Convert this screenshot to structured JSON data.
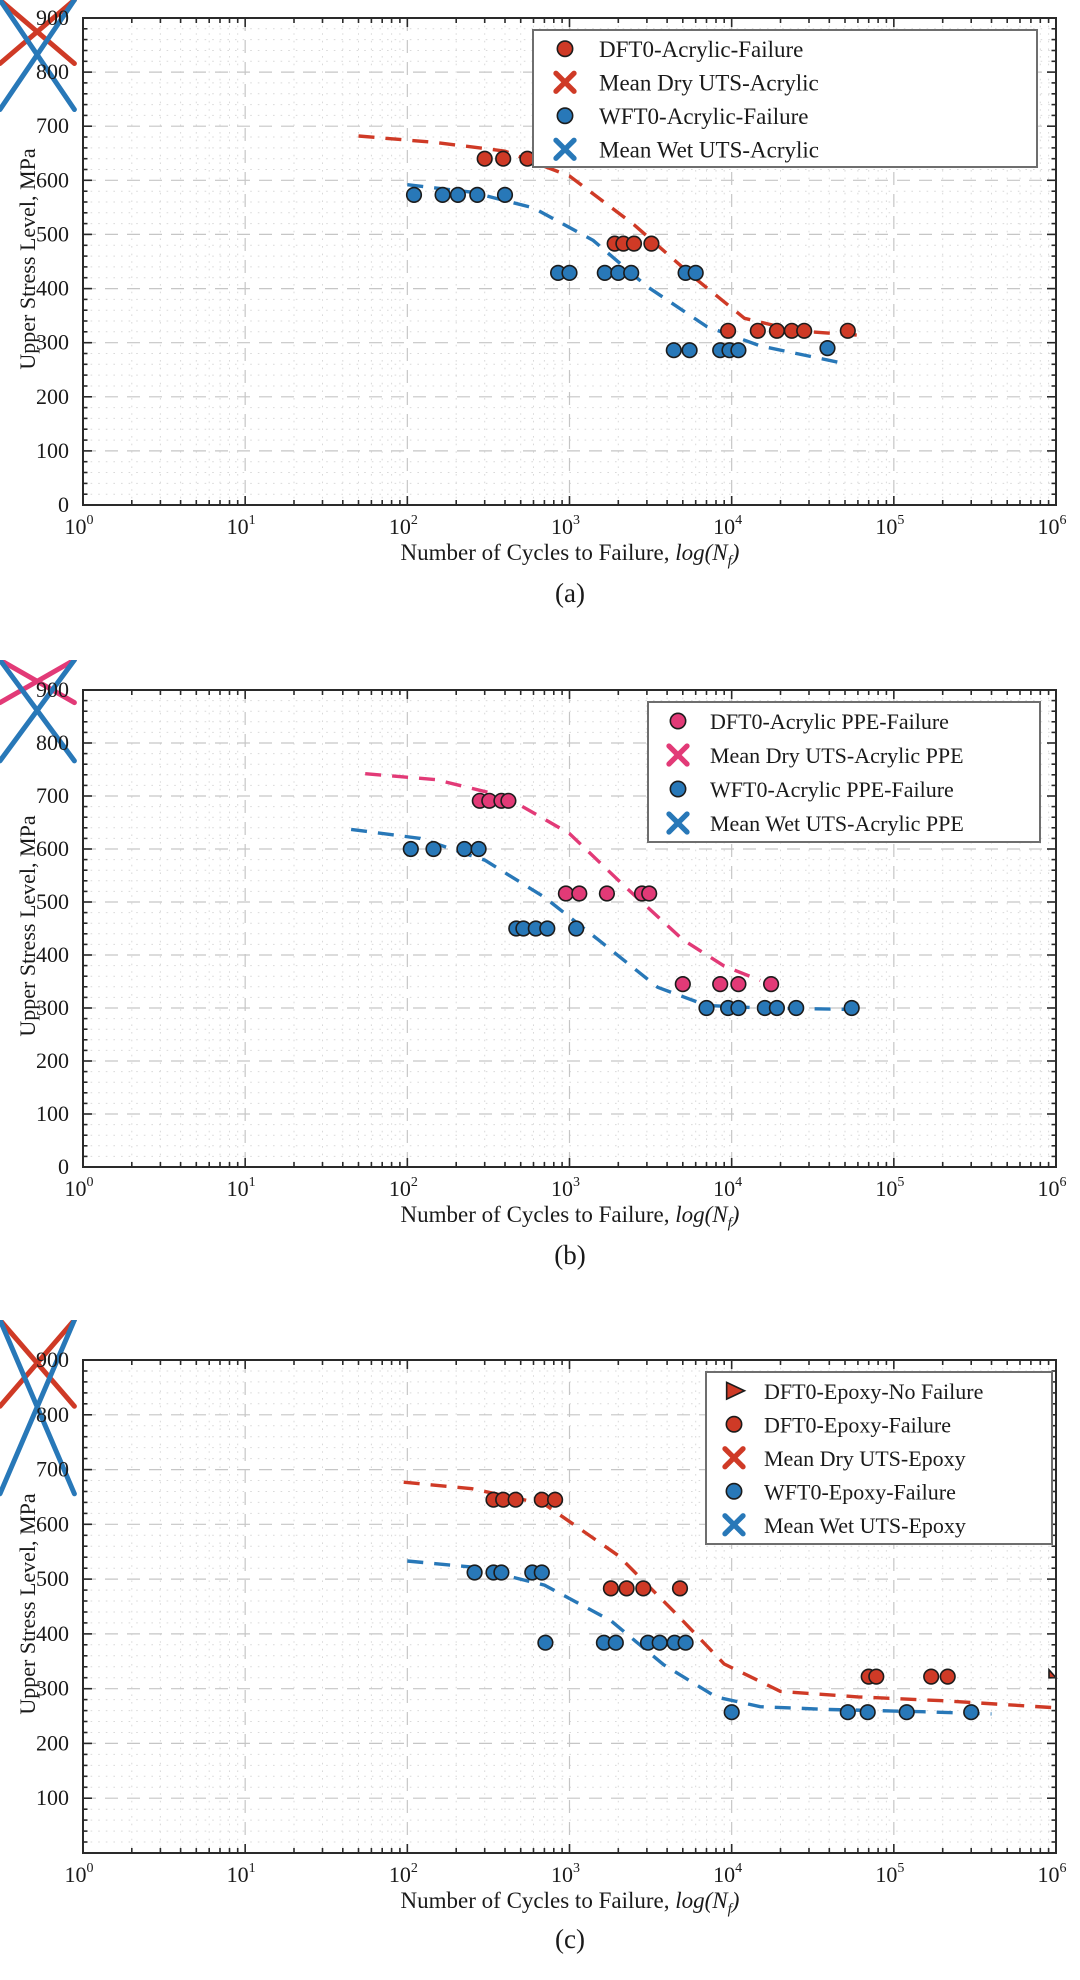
{
  "colors": {
    "dry_red": "#cf3a26",
    "wet_blue": "#2878b8",
    "ppe_pink": "#e23a77",
    "marker_edge": "#1c1c1c",
    "axis": "#2a2a2a",
    "grid_major": "#c6c6c6",
    "grid_minor": "#d9d9d9",
    "legend_border": "#6e6e6e",
    "text": "#1a1a1a"
  },
  "axis_text": {
    "ylabel": "Upper Stress Level, MPa",
    "xlabel_pre": "Number of Cycles to Failure, ",
    "xlabel_log": "log(N",
    "xlabel_sub": "f",
    "xlabel_close": ")",
    "x_tick_base": "10"
  },
  "chart_data": [
    {
      "type": "scatter",
      "caption": "(a)",
      "ylabel": "Upper Stress Level, MPa",
      "xlim_exponents": [
        0,
        6
      ],
      "ylim": [
        0,
        900
      ],
      "grid": true,
      "legend_position": "top-right",
      "x_tick_exponents": [
        0,
        1,
        2,
        3,
        4,
        5,
        6
      ],
      "y_ticks": [
        0,
        100,
        200,
        300,
        400,
        500,
        600,
        700,
        800,
        900
      ],
      "y_tick_labels": [
        "0",
        "100",
        "200",
        "300",
        "400",
        "500",
        "600",
        "700",
        "800",
        "900"
      ],
      "legend": [
        {
          "marker": "circle",
          "color": "dry_red",
          "label": "DFT0-Acrylic-Failure"
        },
        {
          "marker": "x",
          "color": "dry_red",
          "label": "Mean Dry UTS-Acrylic"
        },
        {
          "marker": "circle",
          "color": "wet_blue",
          "label": "WFT0-Acrylic-Failure"
        },
        {
          "marker": "x",
          "color": "wet_blue",
          "label": "Mean Wet UTS-Acrylic"
        }
      ],
      "series": [
        {
          "name": "DFT0-Acrylic-Failure",
          "marker": "circle",
          "color": "dry_red",
          "points": [
            [
              300,
              640
            ],
            [
              390,
              640
            ],
            [
              550,
              640
            ],
            [
              800,
              640
            ],
            [
              1900,
              483
            ],
            [
              2150,
              483
            ],
            [
              2500,
              483
            ],
            [
              3200,
              483
            ],
            [
              9500,
              322
            ],
            [
              14500,
              322
            ],
            [
              19000,
              322
            ],
            [
              23500,
              322
            ],
            [
              28000,
              322
            ],
            [
              52000,
              322
            ]
          ]
        },
        {
          "name": "Mean Dry UTS-Acrylic",
          "marker": "x",
          "color": "dry_red",
          "points": [
            [
              1,
              800
            ]
          ]
        },
        {
          "name": "WFT0-Acrylic-Failure",
          "marker": "circle",
          "color": "wet_blue",
          "points": [
            [
              110,
              573
            ],
            [
              165,
              573
            ],
            [
              205,
              573
            ],
            [
              270,
              573
            ],
            [
              400,
              573
            ],
            [
              850,
              429
            ],
            [
              1000,
              429
            ],
            [
              1650,
              429
            ],
            [
              2000,
              429
            ],
            [
              2400,
              429
            ],
            [
              5200,
              429
            ],
            [
              6000,
              429
            ],
            [
              4400,
              286
            ],
            [
              5500,
              286
            ],
            [
              8500,
              286
            ],
            [
              9700,
              286
            ],
            [
              11000,
              286
            ],
            [
              39000,
              290
            ]
          ]
        },
        {
          "name": "Mean Wet UTS-Acrylic",
          "marker": "x",
          "color": "wet_blue",
          "points": [
            [
              1,
              715
            ]
          ]
        }
      ],
      "trend_lines": [
        {
          "name": "dry-fit",
          "color": "dry_red",
          "points": [
            [
              50,
              682
            ],
            [
              150,
              670
            ],
            [
              400,
              654
            ],
            [
              1000,
              608
            ],
            [
              2500,
              518
            ],
            [
              6000,
              418
            ],
            [
              12000,
              345
            ],
            [
              25000,
              322
            ],
            [
              60000,
              314
            ]
          ]
        },
        {
          "name": "wet-fit",
          "color": "wet_blue",
          "points": [
            [
              100,
              592
            ],
            [
              250,
              578
            ],
            [
              600,
              549
            ],
            [
              1400,
              489
            ],
            [
              3000,
              404
            ],
            [
              7000,
              330
            ],
            [
              15000,
              294
            ],
            [
              45000,
              264
            ]
          ]
        }
      ]
    },
    {
      "type": "scatter",
      "caption": "(b)",
      "ylabel": "Upper Stress Level, MPa",
      "xlim_exponents": [
        0,
        6
      ],
      "ylim": [
        0,
        900
      ],
      "grid": true,
      "legend_position": "top-right",
      "x_tick_exponents": [
        0,
        1,
        2,
        3,
        4,
        5,
        6
      ],
      "y_ticks": [
        0,
        100,
        200,
        300,
        400,
        500,
        600,
        700,
        800,
        900
      ],
      "y_tick_labels": [
        "0",
        "100",
        "200",
        "300",
        "400",
        "500",
        "600",
        "700",
        "800",
        "900"
      ],
      "legend": [
        {
          "marker": "circle",
          "color": "ppe_pink",
          "label": "DFT0-Acrylic PPE-Failure"
        },
        {
          "marker": "x",
          "color": "ppe_pink",
          "label": "Mean Dry UTS-Acrylic PPE"
        },
        {
          "marker": "circle",
          "color": "wet_blue",
          "label": "WFT0-Acrylic PPE-Failure"
        },
        {
          "marker": "x",
          "color": "wet_blue",
          "label": "Mean Wet UTS-Acrylic PPE"
        }
      ],
      "series": [
        {
          "name": "DFT0-Acrylic PPE-Failure",
          "marker": "circle",
          "color": "ppe_pink",
          "points": [
            [
              280,
              691
            ],
            [
              320,
              691
            ],
            [
              380,
              691
            ],
            [
              420,
              691
            ],
            [
              950,
              516
            ],
            [
              1150,
              516
            ],
            [
              1700,
              516
            ],
            [
              2800,
              516
            ],
            [
              3100,
              516
            ],
            [
              5000,
              345
            ],
            [
              8500,
              345
            ],
            [
              11000,
              345
            ],
            [
              17500,
              345
            ]
          ]
        },
        {
          "name": "Mean Dry UTS-Acrylic PPE",
          "marker": "x",
          "color": "ppe_pink",
          "points": [
            [
              1,
              860
            ]
          ]
        },
        {
          "name": "WFT0-Acrylic PPE-Failure",
          "marker": "circle",
          "color": "wet_blue",
          "points": [
            [
              105,
              600
            ],
            [
              145,
              600
            ],
            [
              225,
              600
            ],
            [
              275,
              600
            ],
            [
              470,
              450
            ],
            [
              520,
              450
            ],
            [
              620,
              450
            ],
            [
              730,
              450
            ],
            [
              1100,
              450
            ],
            [
              7000,
              300
            ],
            [
              9500,
              300
            ],
            [
              11000,
              300
            ],
            [
              16000,
              300
            ],
            [
              19000,
              300
            ],
            [
              25000,
              300
            ],
            [
              55000,
              300
            ]
          ]
        },
        {
          "name": "Mean Wet UTS-Acrylic PPE",
          "marker": "x",
          "color": "wet_blue",
          "points": [
            [
              1,
              750
            ]
          ]
        }
      ],
      "trend_lines": [
        {
          "name": "dry-fit",
          "color": "ppe_pink",
          "points": [
            [
              55,
              742
            ],
            [
              150,
              731
            ],
            [
              400,
              699
            ],
            [
              1000,
              629
            ],
            [
              2200,
              529
            ],
            [
              5000,
              429
            ],
            [
              9000,
              379
            ],
            [
              15000,
              352
            ]
          ]
        },
        {
          "name": "wet-fit",
          "color": "wet_blue",
          "points": [
            [
              45,
              637
            ],
            [
              120,
              620
            ],
            [
              300,
              579
            ],
            [
              700,
              509
            ],
            [
              1500,
              429
            ],
            [
              3500,
              339
            ],
            [
              7000,
              305
            ],
            [
              15000,
              300
            ],
            [
              65000,
              297
            ]
          ]
        }
      ]
    },
    {
      "type": "scatter",
      "caption": "(c)",
      "ylabel": "Upper Stress Level, MPa",
      "xlim_exponents": [
        0,
        6
      ],
      "ylim": [
        0,
        900
      ],
      "grid": true,
      "legend_position": "top-right",
      "x_tick_exponents": [
        0,
        1,
        2,
        3,
        4,
        5,
        6
      ],
      "y_ticks": [
        0,
        100,
        200,
        300,
        400,
        500,
        600,
        700,
        800,
        900
      ],
      "y_tick_labels": [
        "",
        "100",
        "200",
        "300",
        "400",
        "500",
        "600",
        "700",
        "800",
        "900"
      ],
      "legend": [
        {
          "marker": "triangle",
          "color": "dry_red",
          "label": "DFT0-Epoxy-No Failure"
        },
        {
          "marker": "circle",
          "color": "dry_red",
          "label": "DFT0-Epoxy-Failure"
        },
        {
          "marker": "x",
          "color": "dry_red",
          "label": "Mean Dry UTS-Epoxy"
        },
        {
          "marker": "circle",
          "color": "wet_blue",
          "label": "WFT0-Epoxy-Failure"
        },
        {
          "marker": "x",
          "color": "wet_blue",
          "label": "Mean Wet UTS-Epoxy"
        }
      ],
      "series": [
        {
          "name": "DFT0-Epoxy-No Failure",
          "marker": "triangle",
          "color": "dry_red",
          "points": [
            [
              1000000,
              320
            ]
          ]
        },
        {
          "name": "DFT0-Epoxy-Failure",
          "marker": "circle",
          "color": "dry_red",
          "points": [
            [
              340,
              645
            ],
            [
              390,
              645
            ],
            [
              465,
              645
            ],
            [
              675,
              645
            ],
            [
              815,
              645
            ],
            [
              1800,
              483
            ],
            [
              2250,
              483
            ],
            [
              2850,
              483
            ],
            [
              4800,
              483
            ],
            [
              70000,
              322
            ],
            [
              78000,
              322
            ],
            [
              170000,
              322
            ],
            [
              215000,
              322
            ]
          ]
        },
        {
          "name": "Mean Dry UTS-Epoxy",
          "marker": "x",
          "color": "dry_red",
          "points": [
            [
              1,
              800
            ]
          ]
        },
        {
          "name": "WFT0-Epoxy-Failure",
          "marker": "circle",
          "color": "wet_blue",
          "points": [
            [
              260,
              512
            ],
            [
              340,
              512
            ],
            [
              380,
              512
            ],
            [
              590,
              512
            ],
            [
              675,
              512
            ],
            [
              710,
              384
            ],
            [
              1630,
              384
            ],
            [
              1930,
              384
            ],
            [
              3050,
              384
            ],
            [
              3600,
              384
            ],
            [
              4450,
              384
            ],
            [
              5200,
              384
            ],
            [
              10000,
              257
            ],
            [
              52000,
              257
            ],
            [
              69000,
              257
            ],
            [
              120000,
              257
            ],
            [
              300000,
              257
            ]
          ]
        },
        {
          "name": "Mean Wet UTS-Epoxy",
          "marker": "x",
          "color": "wet_blue",
          "points": [
            [
              1,
              640
            ]
          ]
        }
      ],
      "trend_lines": [
        {
          "name": "dry-fit",
          "color": "dry_red",
          "points": [
            [
              95,
              677
            ],
            [
              250,
              665
            ],
            [
              700,
              637
            ],
            [
              2000,
              543
            ],
            [
              4500,
              438
            ],
            [
              9000,
              345
            ],
            [
              20000,
              295
            ],
            [
              60000,
              285
            ],
            [
              200000,
              278
            ],
            [
              1000000,
              265
            ]
          ]
        },
        {
          "name": "wet-fit",
          "color": "wet_blue",
          "points": [
            [
              100,
              533
            ],
            [
              250,
              522
            ],
            [
              700,
              489
            ],
            [
              1800,
              424
            ],
            [
              3800,
              344
            ],
            [
              8000,
              285
            ],
            [
              15000,
              267
            ],
            [
              40000,
              262
            ],
            [
              150000,
              258
            ],
            [
              400000,
              254
            ]
          ]
        }
      ]
    }
  ]
}
